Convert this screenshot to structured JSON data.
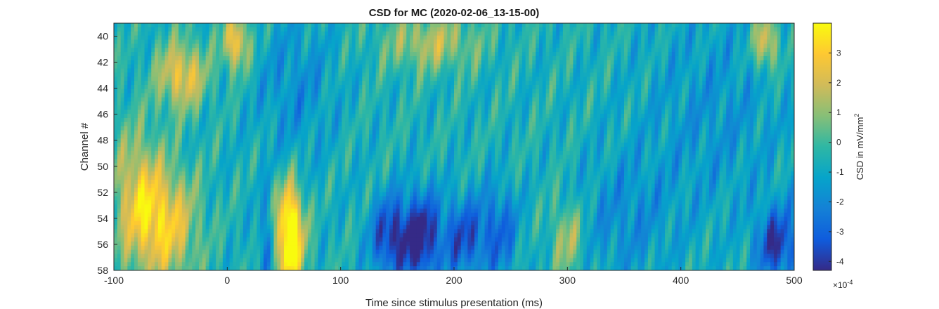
{
  "chart_data": {
    "type": "heatmap",
    "title": "CSD for MC (2020-02-06_13-15-00)",
    "xlabel": "Time since stimulus presentation (ms)",
    "ylabel": "Channel #",
    "xlim": [
      -100,
      500
    ],
    "ylim": [
      39,
      58
    ],
    "y_reversed": true,
    "x_ticks": [
      -100,
      0,
      100,
      200,
      300,
      400,
      500
    ],
    "y_ticks": [
      40,
      42,
      44,
      46,
      48,
      50,
      52,
      54,
      56,
      58
    ],
    "colorbar": {
      "label": "CSD in mV/mm",
      "label_superscript": "2",
      "colormap": "parula",
      "range": [
        -4.3,
        4.0
      ],
      "ticks": [
        -4,
        -3,
        -2,
        -1,
        0,
        1,
        2,
        3
      ],
      "exponent_base": "×10",
      "exponent_power": "-4"
    },
    "hotspots": [
      {
        "x": 55,
        "y": 56.5,
        "value": 3.9,
        "sx": 9,
        "sy": 2.2
      },
      {
        "x": 55,
        "y": 53.5,
        "value": 2.6,
        "sx": 8,
        "sy": 2.0
      },
      {
        "x": 8,
        "y": 40.5,
        "value": 3.0,
        "sx": 8,
        "sy": 1.5
      },
      {
        "x": -40,
        "y": 43.0,
        "value": 2.6,
        "sx": 15,
        "sy": 1.8
      },
      {
        "x": -55,
        "y": 54.5,
        "value": 2.8,
        "sx": 20,
        "sy": 3.0
      },
      {
        "x": -80,
        "y": 52.0,
        "value": 1.8,
        "sx": 15,
        "sy": 3.5
      },
      {
        "x": 475,
        "y": 40.5,
        "value": 2.5,
        "sx": 8,
        "sy": 1.5
      },
      {
        "x": 180,
        "y": 40.5,
        "value": 1.5,
        "sx": 30,
        "sy": 1.5
      },
      {
        "x": 300,
        "y": 55.5,
        "value": 1.5,
        "sx": 10,
        "sy": 2.0
      },
      {
        "x": 145,
        "y": 55.5,
        "value": -4.1,
        "sx": 13,
        "sy": 2.2
      },
      {
        "x": 172,
        "y": 55.5,
        "value": -4.3,
        "sx": 11,
        "sy": 2.5
      },
      {
        "x": 208,
        "y": 55.5,
        "value": -3.4,
        "sx": 14,
        "sy": 2.2
      },
      {
        "x": 240,
        "y": 55.0,
        "value": -2.8,
        "sx": 12,
        "sy": 2.5
      },
      {
        "x": 485,
        "y": 56.0,
        "value": -3.9,
        "sx": 13,
        "sy": 2.0
      },
      {
        "x": 35,
        "y": 56.0,
        "value": -2.4,
        "sx": 6,
        "sy": 2.5
      },
      {
        "x": 60,
        "y": 44.0,
        "value": -1.8,
        "sx": 25,
        "sy": 4.0
      },
      {
        "x": 430,
        "y": 46.0,
        "value": -1.6,
        "sx": 45,
        "sy": 6.0
      },
      {
        "x": 350,
        "y": 54.0,
        "value": -1.8,
        "sx": 30,
        "sy": 3.5
      }
    ]
  }
}
